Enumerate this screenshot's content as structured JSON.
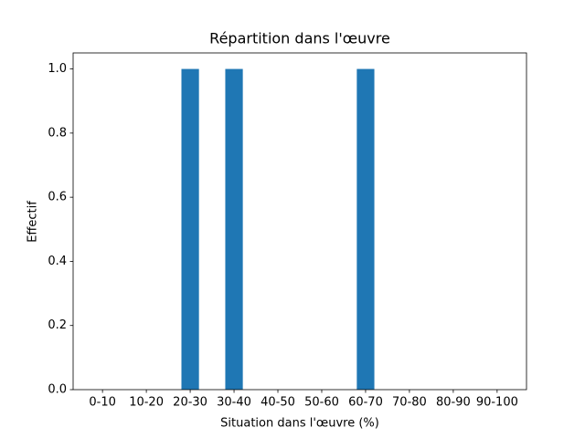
{
  "chart_data": {
    "type": "bar",
    "title": "Répartition dans l'œuvre",
    "x_label": "Situation dans l'œuvre (%)",
    "y_label": "Effectif",
    "categories": [
      "0-10",
      "10-20",
      "20-30",
      "30-40",
      "40-50",
      "50-60",
      "60-70",
      "70-80",
      "80-90",
      "90-100"
    ],
    "values": [
      0,
      0,
      1,
      1,
      0,
      0,
      1,
      0,
      0,
      0
    ],
    "color": "#1f77b4",
    "ylim": [
      0,
      1.05
    ],
    "yticks": [
      {
        "value": 0,
        "label": "0.0"
      },
      0.2,
      0.4,
      0.6,
      0.8,
      {
        "value": 1,
        "label": "1.0"
      }
    ],
    "grid": false
  }
}
